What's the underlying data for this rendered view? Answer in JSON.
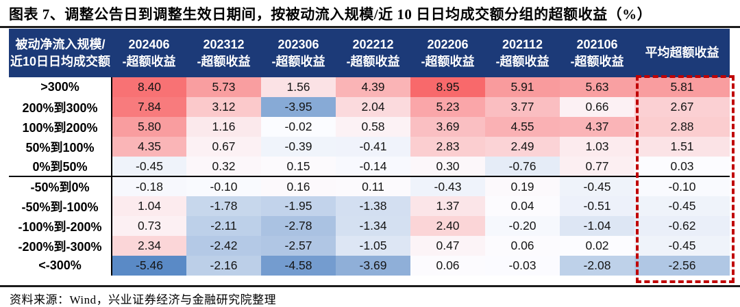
{
  "title": "图表 7、调整公告日到调整生效日期间，按被动流入规模/近 10 日日均成交额分组的超额收益（%）",
  "source": "资料来源：Wind，兴业证券经济与金融研究院整理",
  "colors": {
    "header_bg": "#1C3A78",
    "frame": "#C00000",
    "rule": "#1A1A1A",
    "header_text": "#FFFFFF"
  },
  "chart_data": {
    "type": "heatmap",
    "title": "图表 7、调整公告日到调整生效日期间，按被动流入规模/近 10 日日均成交额分组的超额收益（%）",
    "row_header_lines": [
      "被动净流入规模/",
      "近10日日均成交额"
    ],
    "period_columns": [
      {
        "period": "202406",
        "suffix": "-超额收益"
      },
      {
        "period": "202312",
        "suffix": "-超额收益"
      },
      {
        "period": "202306",
        "suffix": "-超额收益"
      },
      {
        "period": "202212",
        "suffix": "-超额收益"
      },
      {
        "period": "202206",
        "suffix": "-超额收益"
      },
      {
        "period": "202112",
        "suffix": "-超额收益"
      },
      {
        "period": "202106",
        "suffix": "-超额收益"
      }
    ],
    "avg_column_label": "平均超额收益",
    "rows": [
      {
        "label": ">300%",
        "values": [
          8.4,
          5.73,
          1.56,
          4.39,
          8.95,
          5.91,
          5.63,
          5.81
        ]
      },
      {
        "label": "200%到300%",
        "values": [
          7.84,
          3.12,
          -3.95,
          2.04,
          5.23,
          3.77,
          0.66,
          2.67
        ]
      },
      {
        "label": "100%到200%",
        "values": [
          5.8,
          1.16,
          -0.02,
          0.58,
          3.69,
          4.55,
          4.37,
          2.88
        ]
      },
      {
        "label": "50%到100%",
        "values": [
          4.35,
          0.67,
          -0.39,
          -0.41,
          2.83,
          2.49,
          1.03,
          1.51
        ]
      },
      {
        "label": "0%到50%",
        "values": [
          -0.45,
          0.32,
          0.15,
          -0.14,
          0.3,
          -0.76,
          0.77,
          0.03
        ]
      },
      {
        "label": "-50%到0%",
        "values": [
          -0.18,
          -0.1,
          0.16,
          0.11,
          -0.43,
          0.19,
          -0.45,
          -0.1
        ]
      },
      {
        "label": "-50%到-100%",
        "values": [
          1.04,
          -1.78,
          -1.95,
          -1.38,
          1.37,
          0.04,
          -0.51,
          -0.45
        ]
      },
      {
        "label": "-100%到-200%",
        "values": [
          0.73,
          -2.11,
          -2.78,
          -1.34,
          2.4,
          -0.2,
          -1.04,
          -0.62
        ]
      },
      {
        "label": "-200%到-300%",
        "values": [
          2.34,
          -2.42,
          -2.57,
          -1.05,
          0.47,
          0.06,
          0.02,
          -0.45
        ]
      },
      {
        "label": "<-300%",
        "values": [
          -5.46,
          -2.16,
          -4.58,
          -3.69,
          0.06,
          -0.03,
          -2.08,
          -2.56
        ]
      }
    ],
    "group_separator_after_row_index": 4,
    "color_scale": {
      "min": -5.46,
      "mid": 0,
      "max": 8.95,
      "min_color": "#5A8AC6",
      "mid_color": "#FCFCFF",
      "max_color": "#F8696B"
    },
    "highlighted_column": "平均超额收益",
    "layout": {
      "label_col_width": 150,
      "period_col_width": 109,
      "avg_col_width": 139,
      "legend": "none",
      "grid": "off"
    }
  }
}
